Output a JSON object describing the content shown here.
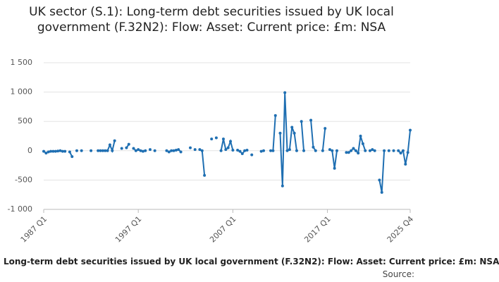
{
  "chart_data": {
    "type": "line",
    "title": "UK sector (S.1): Long-term debt securities issued by UK local government (F.32N2): Flow: Asset: Current price: £m: NSA",
    "footer": "Long-term debt securities issued by UK local government (F.32N2): Flow: Asset: Current price: £m: NSA",
    "source": "Source:",
    "categories": [
      "1987 Q1",
      null,
      null,
      null,
      null,
      null,
      null,
      null,
      null,
      null,
      null,
      null,
      null,
      null,
      null,
      null,
      null,
      null,
      null,
      null,
      null,
      null,
      null,
      null,
      null,
      null,
      null,
      null,
      null,
      null,
      null,
      null,
      null,
      null,
      null,
      null,
      null,
      null,
      null,
      null,
      "1997 Q1",
      null,
      null,
      null,
      null,
      null,
      null,
      null,
      null,
      null,
      null,
      null,
      null,
      null,
      null,
      null,
      null,
      null,
      null,
      null,
      null,
      null,
      null,
      null,
      null,
      null,
      null,
      null,
      null,
      null,
      null,
      null,
      null,
      null,
      null,
      null,
      null,
      null,
      null,
      null,
      "2007 Q1",
      null,
      null,
      null,
      null,
      null,
      null,
      null,
      null,
      null,
      null,
      null,
      null,
      null,
      null,
      null,
      null,
      null,
      null,
      null,
      null,
      null,
      null,
      null,
      null,
      null,
      null,
      null,
      null,
      null,
      null,
      null,
      null,
      null,
      null,
      null,
      null,
      null,
      null,
      null,
      "2017 Q1",
      null,
      null,
      null,
      null,
      null,
      null,
      null,
      null,
      null,
      null,
      null,
      null,
      null,
      null,
      null,
      null,
      null,
      null,
      null,
      null,
      null,
      null,
      null,
      null,
      null,
      null,
      null,
      null,
      null,
      null,
      null,
      null,
      null,
      null,
      "2025 Q4"
    ],
    "series": [
      {
        "color": "#1f6fb2",
        "values": [
          -10,
          -40,
          -20,
          -10,
          -10,
          -10,
          -5,
          0,
          -10,
          -10,
          null,
          -20,
          -100,
          null,
          0,
          null,
          0,
          null,
          null,
          null,
          0,
          null,
          null,
          0,
          0,
          0,
          0,
          0,
          100,
          0,
          170,
          null,
          null,
          40,
          null,
          50,
          110,
          null,
          40,
          0,
          20,
          0,
          -10,
          0,
          null,
          20,
          null,
          0,
          null,
          null,
          null,
          null,
          0,
          -20,
          0,
          0,
          10,
          20,
          -20,
          null,
          null,
          null,
          50,
          null,
          20,
          null,
          20,
          0,
          -420,
          null,
          null,
          200,
          null,
          220,
          null,
          0,
          200,
          20,
          50,
          160,
          10,
          null,
          10,
          -10,
          -50,
          0,
          10,
          null,
          -70,
          null,
          null,
          null,
          -10,
          0,
          null,
          null,
          0,
          0,
          600,
          null,
          300,
          -600,
          990,
          0,
          20,
          400,
          300,
          0,
          null,
          500,
          0,
          null,
          null,
          520,
          60,
          0,
          null,
          null,
          0,
          380,
          null,
          20,
          0,
          -300,
          0,
          null,
          null,
          null,
          -30,
          -30,
          0,
          40,
          0,
          -40,
          250,
          120,
          0,
          null,
          0,
          20,
          0,
          null,
          -500,
          -710,
          0,
          null,
          0,
          null,
          0,
          null,
          0,
          -40,
          0,
          -230,
          -30,
          350
        ]
      }
    ],
    "ylim": [
      -1000,
      1500
    ],
    "yticks": [
      {
        "value": 1500,
        "label": "1 500"
      },
      {
        "value": 1000,
        "label": "1 000"
      },
      500,
      0,
      -500,
      {
        "value": -1000,
        "label": "-1 000"
      }
    ],
    "grid": true
  }
}
